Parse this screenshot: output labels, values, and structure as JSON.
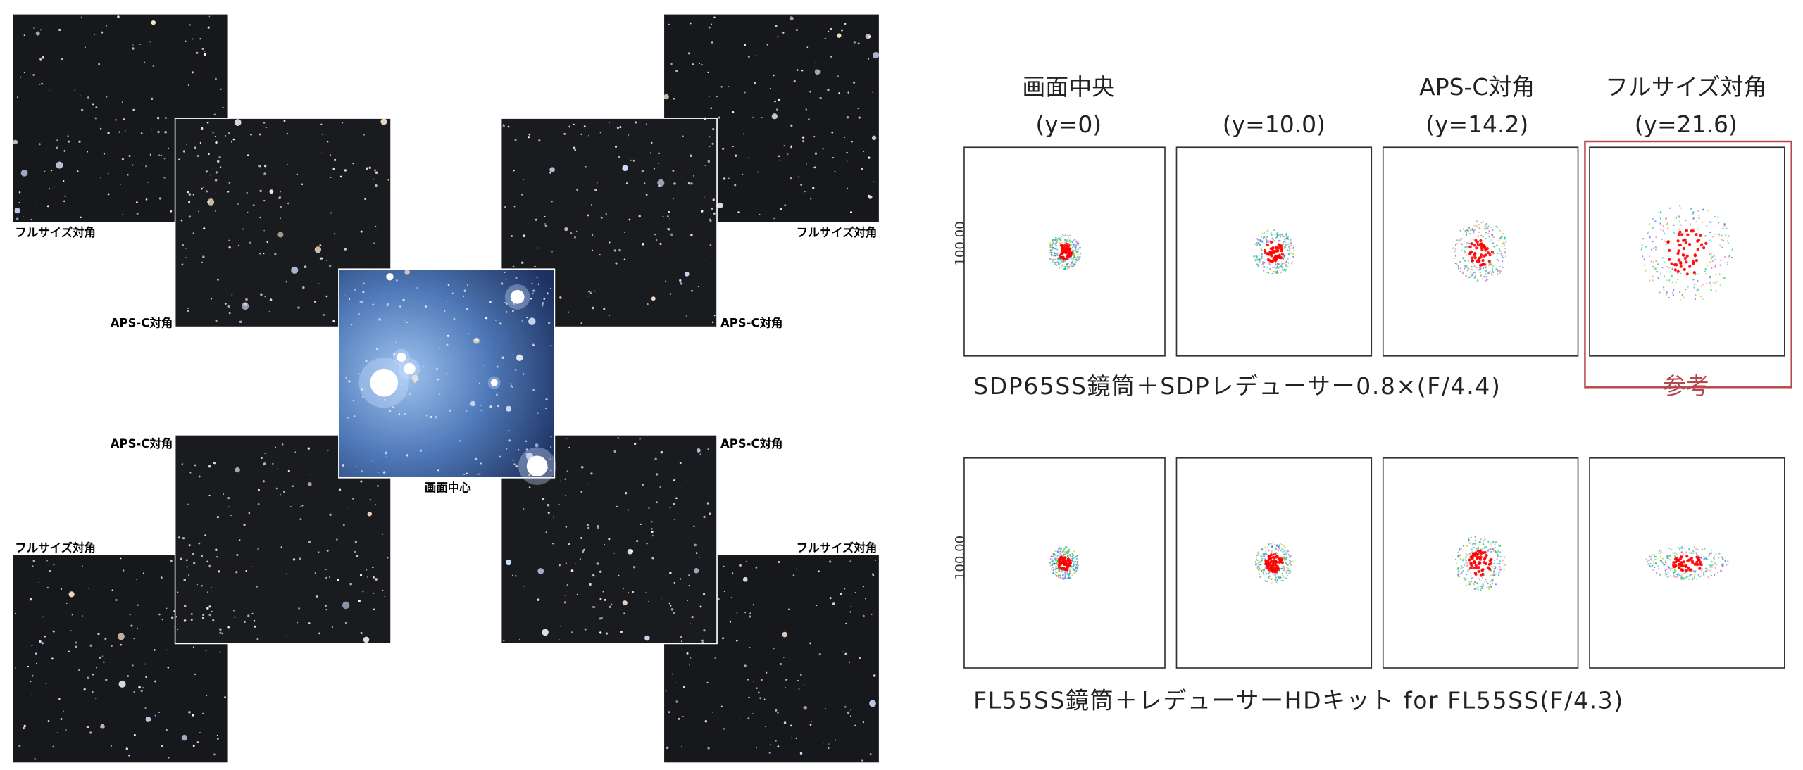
{
  "left_panel": {
    "full_size_diagonal": "フルサイズ対角",
    "apsc_diagonal": "APS-C対角",
    "center": "画面中心"
  },
  "right_panel": {
    "columns": [
      {
        "title": "画面中央",
        "position": "(y=0)"
      },
      {
        "title": null,
        "position": "(y=10.0)"
      },
      {
        "title": "APS-C対角",
        "position": "(y=14.2)"
      },
      {
        "title": "フルサイズ対角",
        "position": "(y=21.6)"
      }
    ],
    "axis_label": "100.00",
    "rows": [
      {
        "caption": "SDP65SS鏡筒＋SDPレデューサー0.8×(F/4.4)",
        "note": "参考"
      },
      {
        "caption": "FL55SS鏡筒＋レデューサーHDキット for FL55SS(F/4.3)"
      }
    ]
  }
}
